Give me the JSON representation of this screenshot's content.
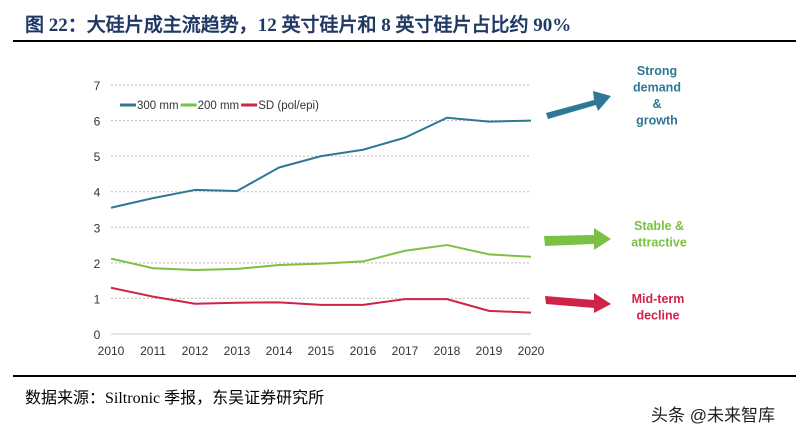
{
  "title": "图 22：大硅片成主流趋势，12 英寸硅片和 8 英寸硅片占比约 90%",
  "source": "数据来源：Siltronic 季报，东吴证券研究所",
  "watermark": "头条 @未来智库",
  "chart_data": {
    "type": "line",
    "title": "",
    "xlabel": "",
    "ylabel": "",
    "x": [
      "2010",
      "2011",
      "2012",
      "2013",
      "2014",
      "2015",
      "2016",
      "2017",
      "2018",
      "2019",
      "2020"
    ],
    "ylim": [
      0,
      7
    ],
    "yticks": [
      "0",
      "1",
      "2",
      "3",
      "4",
      "5",
      "6",
      "7"
    ],
    "grid": true,
    "legend_position": "top-left",
    "series": [
      {
        "name": "300 mm",
        "color": "#2e7896",
        "values": [
          3.55,
          3.82,
          4.05,
          4.02,
          4.68,
          5.0,
          5.18,
          5.52,
          6.08,
          5.97,
          6.0
        ]
      },
      {
        "name": "200 mm",
        "color": "#7ac143",
        "values": [
          2.12,
          1.85,
          1.8,
          1.83,
          1.94,
          1.98,
          2.04,
          2.34,
          2.5,
          2.24,
          2.17
        ]
      },
      {
        "name": "SD (pol/epi)",
        "color": "#d0234a",
        "values": [
          1.3,
          1.05,
          0.85,
          0.88,
          0.89,
          0.82,
          0.82,
          0.98,
          0.98,
          0.65,
          0.6
        ]
      }
    ],
    "annotations": [
      {
        "lines": [
          "Strong",
          "demand",
          "&",
          "growth"
        ],
        "color": "#2e7896"
      },
      {
        "lines": [
          "Stable &",
          "attractive"
        ],
        "color": "#7ac143"
      },
      {
        "lines": [
          "Mid-term",
          "decline"
        ],
        "color": "#d0234a"
      }
    ]
  }
}
